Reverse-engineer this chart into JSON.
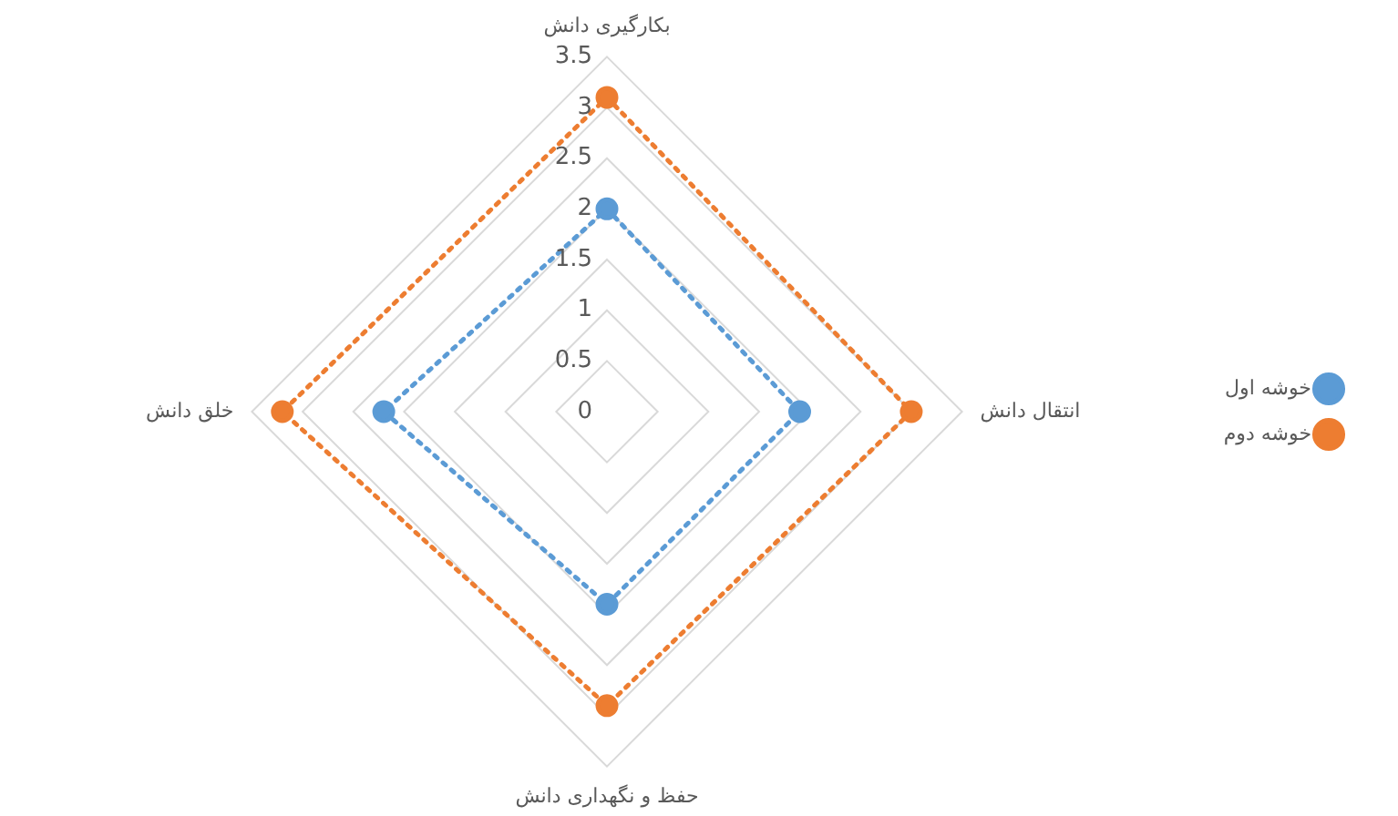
{
  "chart_data": {
    "type": "radar",
    "categories": [
      "بکارگیری دانش",
      "انتقال دانش",
      "حفظ و نگهداری دانش",
      "خلق دانش"
    ],
    "series": [
      {
        "name": "خوشه اول",
        "color": "#5b9bd5",
        "values": [
          2.0,
          1.9,
          1.9,
          2.2
        ]
      },
      {
        "name": "خوشه دوم",
        "color": "#ed7d31",
        "values": [
          3.1,
          3.0,
          2.9,
          3.2
        ]
      }
    ],
    "ylim": [
      0,
      3.5
    ],
    "yticks": [
      0,
      0.5,
      1,
      1.5,
      2,
      2.5,
      3,
      3.5
    ],
    "grid": true,
    "legend": "right",
    "marker": "circle",
    "line_style": "dotted"
  }
}
